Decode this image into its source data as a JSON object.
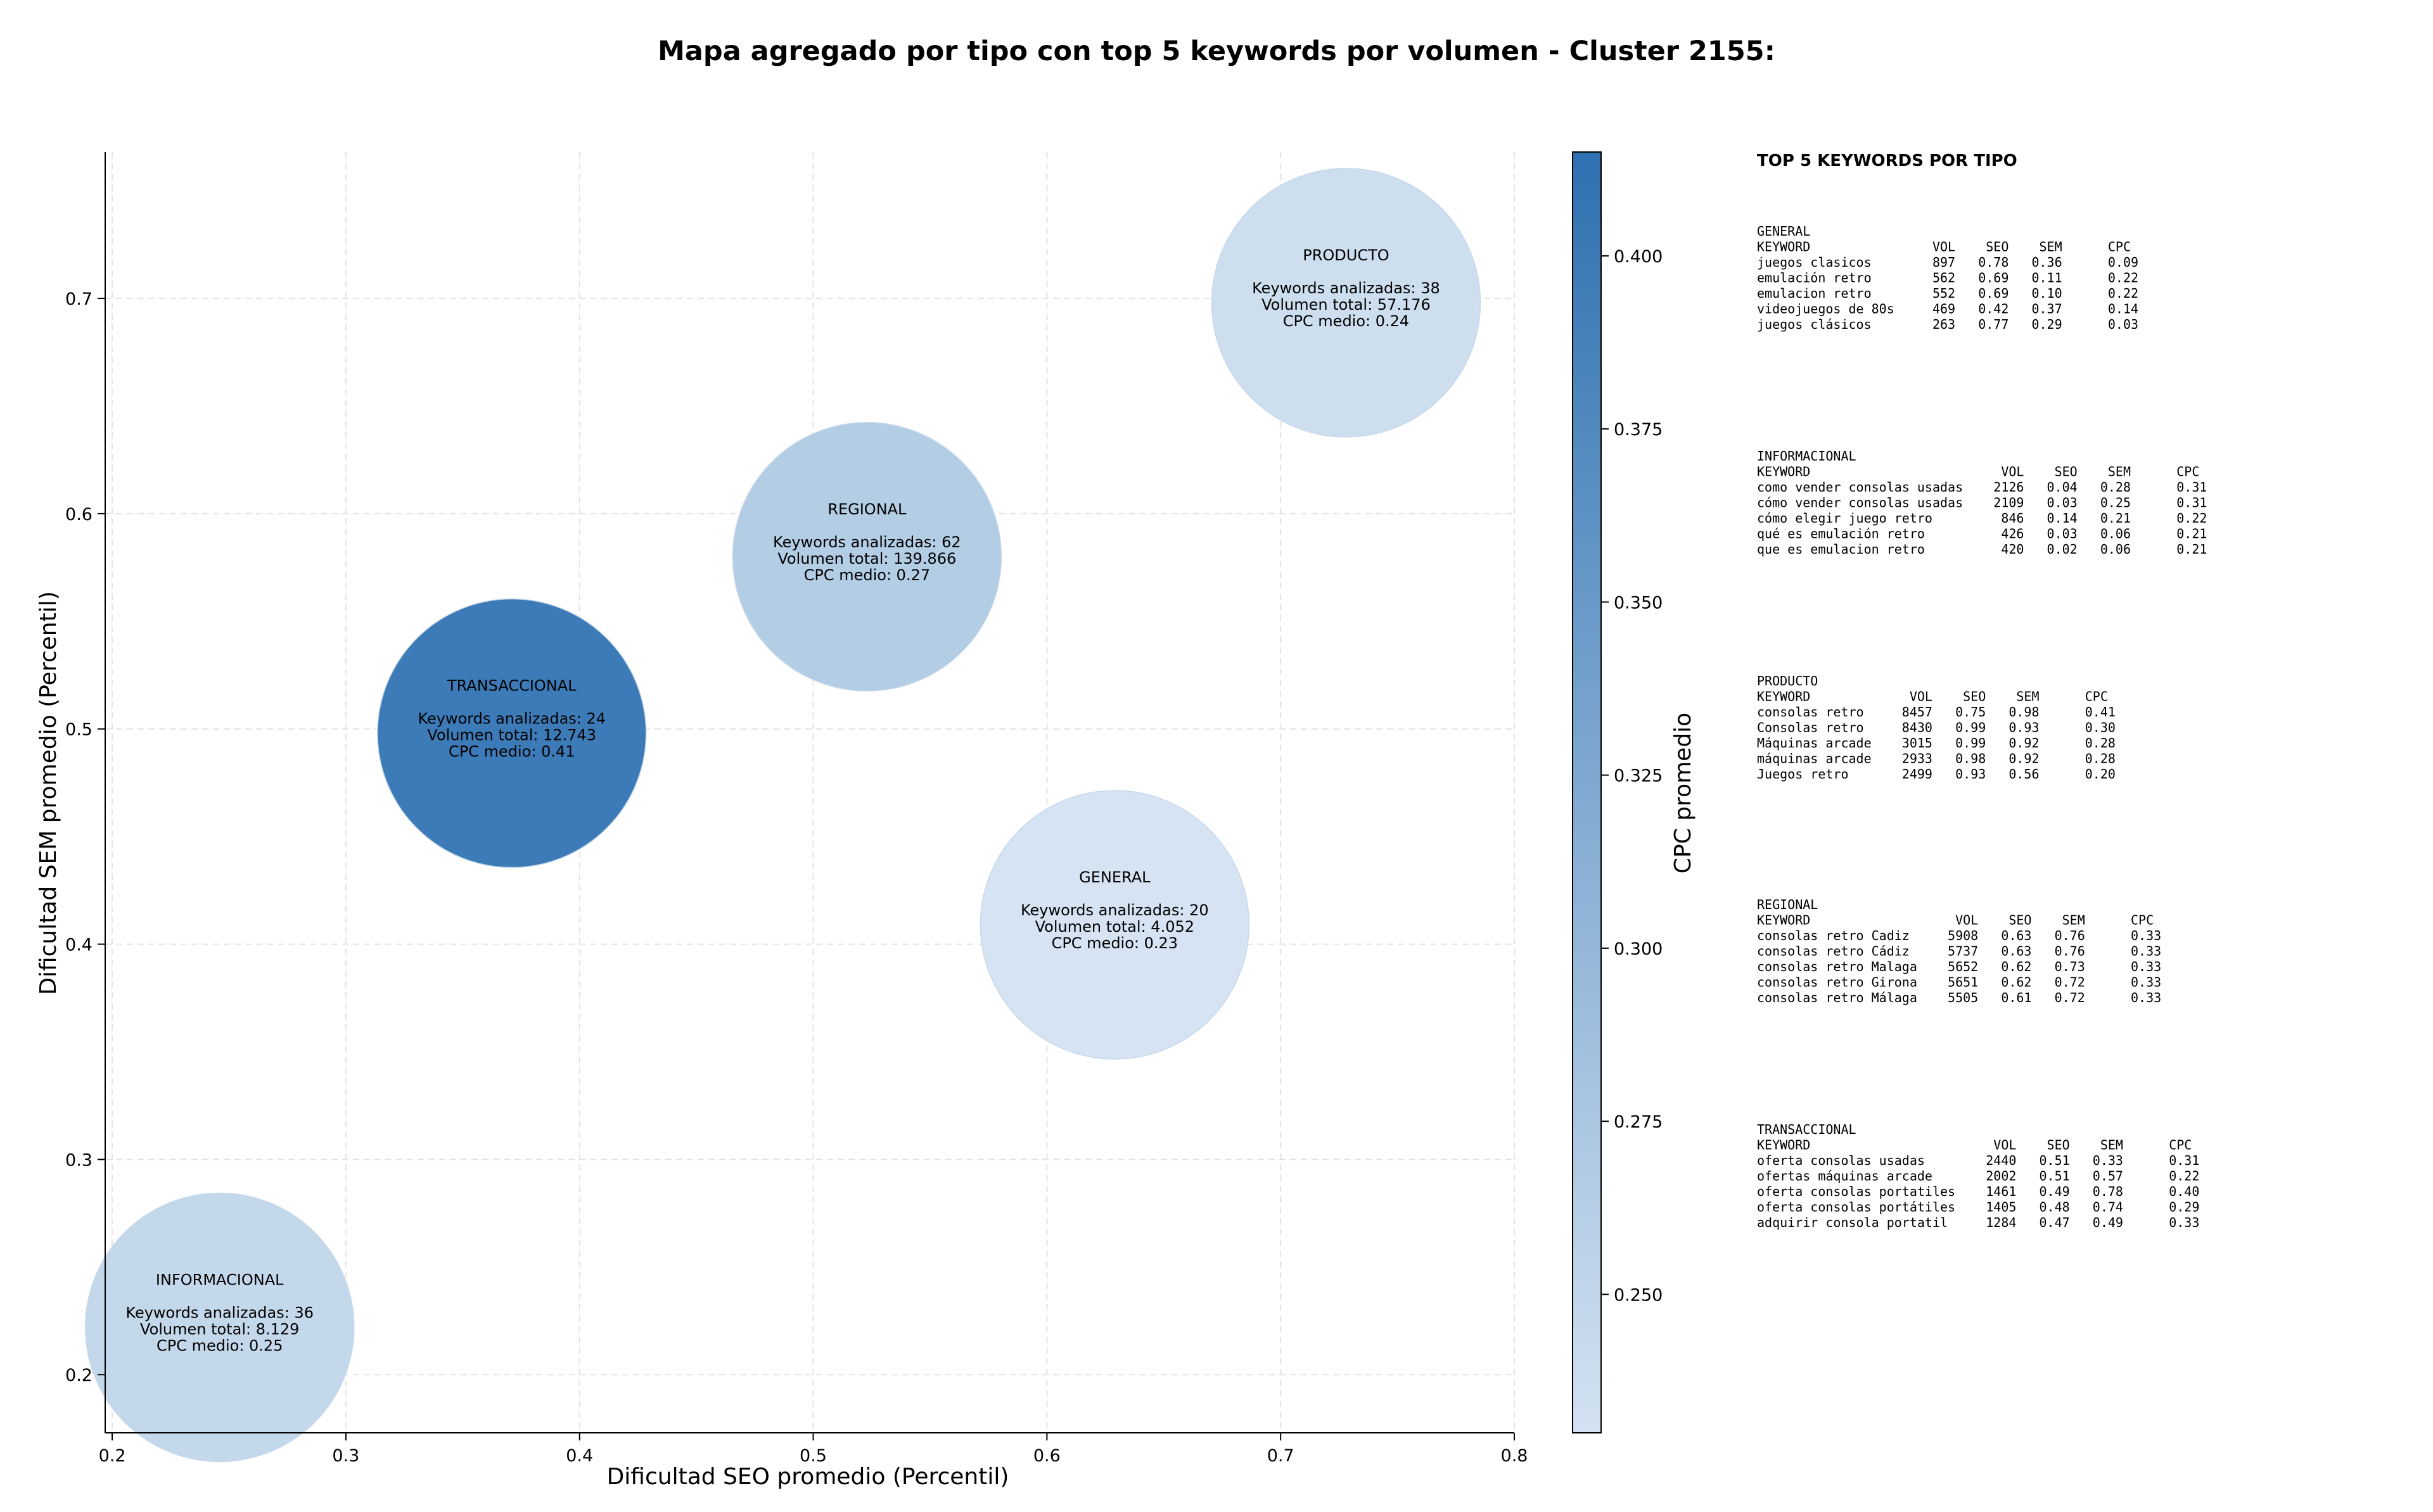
{
  "chart_data": {
    "type": "scatter",
    "title": "Mapa agregado por tipo con top 5 keywords por volumen - Cluster 2155:",
    "xlabel": "Dificultad SEO promedio (Percentil)",
    "ylabel": "Dificultad SEM promedio (Percentil)",
    "xlim": [
      0.197,
      0.8
    ],
    "ylim": [
      0.173,
      0.768
    ],
    "xticks": [
      "0.2",
      "0.3",
      "0.4",
      "0.5",
      "0.6",
      "0.7",
      "0.8"
    ],
    "yticks": [
      "0.2",
      "0.3",
      "0.4",
      "0.5",
      "0.6",
      "0.7"
    ],
    "grid": true,
    "bubble_label_keywords": "Keywords analizadas: ",
    "bubble_label_volume": "Volumen total: ",
    "bubble_label_cpc": "CPC medio: ",
    "points": [
      {
        "name": "PRODUCTO",
        "x": 0.728,
        "y": 0.698,
        "keywords": "38",
        "volume": "57.176",
        "cpc": "0.24",
        "cpc_value": 0.24
      },
      {
        "name": "REGIONAL",
        "x": 0.523,
        "y": 0.58,
        "keywords": "62",
        "volume": "139.866",
        "cpc": "0.27",
        "cpc_value": 0.27
      },
      {
        "name": "TRANSACCIONAL",
        "x": 0.371,
        "y": 0.498,
        "keywords": "24",
        "volume": "12.743",
        "cpc": "0.41",
        "cpc_value": 0.41
      },
      {
        "name": "GENERAL",
        "x": 0.629,
        "y": 0.409,
        "keywords": "20",
        "volume": "4.052",
        "cpc": "0.23",
        "cpc_value": 0.23
      },
      {
        "name": "INFORMACIONAL",
        "x": 0.246,
        "y": 0.222,
        "keywords": "36",
        "volume": "8.129",
        "cpc": "0.25",
        "cpc_value": 0.25
      }
    ],
    "colorbar": {
      "label": "CPC promedio",
      "min": 0.23,
      "max": 0.415,
      "ticks": [
        "0.250",
        "0.275",
        "0.300",
        "0.325",
        "0.350",
        "0.375",
        "0.400"
      ],
      "color_low": "#d3e2f2",
      "color_high": "#2e71b1"
    },
    "side_table": {
      "title": "TOP 5 KEYWORDS POR TIPO",
      "columns": [
        "KEYWORD",
        "VOL",
        "SEO",
        "SEM",
        "CPC"
      ],
      "groups": [
        {
          "name": "GENERAL",
          "rows": [
            [
              "juegos clasicos",
              "897",
              "0.78",
              "0.36",
              "0.09"
            ],
            [
              "emulación retro",
              "562",
              "0.69",
              "0.11",
              "0.22"
            ],
            [
              "emulacion retro",
              "552",
              "0.69",
              "0.10",
              "0.22"
            ],
            [
              "videojuegos de 80s",
              "469",
              "0.42",
              "0.37",
              "0.14"
            ],
            [
              "juegos clásicos",
              "263",
              "0.77",
              "0.29",
              "0.03"
            ]
          ]
        },
        {
          "name": "INFORMACIONAL",
          "rows": [
            [
              "como vender consolas usadas",
              "2126",
              "0.04",
              "0.28",
              "0.31"
            ],
            [
              "cómo vender consolas usadas",
              "2109",
              "0.03",
              "0.25",
              "0.31"
            ],
            [
              "cómo elegir juego retro",
              "846",
              "0.14",
              "0.21",
              "0.22"
            ],
            [
              "qué es emulación retro",
              "426",
              "0.03",
              "0.06",
              "0.21"
            ],
            [
              "que es emulacion retro",
              "420",
              "0.02",
              "0.06",
              "0.21"
            ]
          ]
        },
        {
          "name": "PRODUCTO",
          "rows": [
            [
              "consolas retro",
              "8457",
              "0.75",
              "0.98",
              "0.41"
            ],
            [
              "Consolas retro",
              "8430",
              "0.99",
              "0.93",
              "0.30"
            ],
            [
              "Máquinas arcade",
              "3015",
              "0.99",
              "0.92",
              "0.28"
            ],
            [
              "máquinas arcade",
              "2933",
              "0.98",
              "0.92",
              "0.28"
            ],
            [
              "Juegos retro",
              "2499",
              "0.93",
              "0.56",
              "0.20"
            ]
          ]
        },
        {
          "name": "REGIONAL",
          "rows": [
            [
              "consolas retro Cadiz",
              "5908",
              "0.63",
              "0.76",
              "0.33"
            ],
            [
              "consolas retro Cádiz",
              "5737",
              "0.63",
              "0.76",
              "0.33"
            ],
            [
              "consolas retro Malaga",
              "5652",
              "0.62",
              "0.73",
              "0.33"
            ],
            [
              "consolas retro Girona",
              "5651",
              "0.62",
              "0.72",
              "0.33"
            ],
            [
              "consolas retro Málaga",
              "5505",
              "0.61",
              "0.72",
              "0.33"
            ]
          ]
        },
        {
          "name": "TRANSACCIONAL",
          "rows": [
            [
              "oferta consolas usadas",
              "2440",
              "0.51",
              "0.33",
              "0.31"
            ],
            [
              "ofertas máquinas arcade",
              "2002",
              "0.51",
              "0.57",
              "0.22"
            ],
            [
              "oferta consolas portatiles",
              "1461",
              "0.49",
              "0.78",
              "0.40"
            ],
            [
              "oferta consolas portátiles",
              "1405",
              "0.48",
              "0.74",
              "0.29"
            ],
            [
              "adquirir consola portatil",
              "1284",
              "0.47",
              "0.49",
              "0.33"
            ]
          ]
        }
      ]
    }
  }
}
